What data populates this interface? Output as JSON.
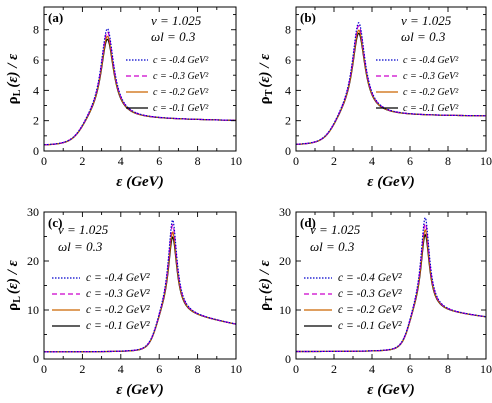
{
  "chart_data": [
    {
      "panel": "(a)",
      "type": "line",
      "xlabel": "ε (GeV)",
      "ylabel_main": "ρ",
      "ylabel_sub": "L",
      "ylabel_rest": "(ε) / ε",
      "xlim": [
        0,
        10
      ],
      "ylim": [
        0,
        9.5
      ],
      "xticks": [
        0,
        2,
        4,
        6,
        8,
        10
      ],
      "yticks": [
        0,
        2,
        4,
        6,
        8
      ],
      "params": [
        "ν = 1.025",
        "ωl = 0.3"
      ],
      "legend_position": "top-right",
      "peak": {
        "x": 3.3,
        "width": 0.9,
        "base": 2.15,
        "tail": 2.0
      },
      "series": [
        {
          "name": "c = -0.4 GeV²",
          "color": "#0000cc",
          "dash": "dotted",
          "peak_value": 8.1
        },
        {
          "name": "c = -0.3 GeV²",
          "color": "#cc00cc",
          "dash": "dashed",
          "peak_value": 7.9
        },
        {
          "name": "c = -0.2 GeV²",
          "color": "#cc6600",
          "dash": "solid",
          "peak_value": 7.6
        },
        {
          "name": "c = -0.1 GeV²",
          "color": "#000000",
          "dash": "solid",
          "peak_value": 7.4
        }
      ]
    },
    {
      "panel": "(b)",
      "type": "line",
      "xlabel": "ε (GeV)",
      "ylabel_main": "ρ",
      "ylabel_sub": "T",
      "ylabel_rest": "(ε) / ε",
      "xlim": [
        0,
        10
      ],
      "ylim": [
        0,
        9.5
      ],
      "xticks": [
        0,
        2,
        4,
        6,
        8,
        10
      ],
      "yticks": [
        0,
        2,
        4,
        6,
        8
      ],
      "params": [
        "ν = 1.025",
        "ωl = 0.3"
      ],
      "legend_position": "top-right",
      "peak": {
        "x": 3.3,
        "width": 0.9,
        "base": 2.35,
        "tail": 2.3
      },
      "series": [
        {
          "name": "c = -0.4 GeV²",
          "color": "#0000cc",
          "dash": "dotted",
          "peak_value": 8.5
        },
        {
          "name": "c = -0.3 GeV²",
          "color": "#cc00cc",
          "dash": "dashed",
          "peak_value": 8.3
        },
        {
          "name": "c = -0.2 GeV²",
          "color": "#cc6600",
          "dash": "solid",
          "peak_value": 8.0
        },
        {
          "name": "c = -0.1 GeV²",
          "color": "#000000",
          "dash": "solid",
          "peak_value": 7.8
        }
      ]
    },
    {
      "panel": "(c)",
      "type": "line",
      "xlabel": "ε (GeV)",
      "ylabel_main": "ρ",
      "ylabel_sub": "L",
      "ylabel_rest": "(ε) / ε",
      "xlim": [
        0,
        10
      ],
      "ylim": [
        0,
        30
      ],
      "xticks": [
        0,
        2,
        4,
        6,
        8,
        10
      ],
      "yticks": [
        0,
        10,
        20,
        30
      ],
      "params": [
        "ν = 1.025",
        "ωl = 0.3"
      ],
      "legend_position": "center-left",
      "peak": {
        "x": 6.7,
        "width": 0.6,
        "base": 9.5,
        "tail": 7.0
      },
      "series": [
        {
          "name": "c = -0.4 GeV²",
          "color": "#0000cc",
          "dash": "dotted",
          "peak_value": 28.5
        },
        {
          "name": "c = -0.3 GeV²",
          "color": "#cc00cc",
          "dash": "dashed",
          "peak_value": 27.5
        },
        {
          "name": "c = -0.2 GeV²",
          "color": "#cc6600",
          "dash": "solid",
          "peak_value": 26.0
        },
        {
          "name": "c = -0.1 GeV²",
          "color": "#000000",
          "dash": "solid",
          "peak_value": 25.0
        }
      ]
    },
    {
      "panel": "(d)",
      "type": "line",
      "xlabel": "ε (GeV)",
      "ylabel_main": "ρ",
      "ylabel_sub": "T",
      "ylabel_rest": "(ε) / ε",
      "xlim": [
        0,
        10
      ],
      "ylim": [
        0,
        30
      ],
      "xticks": [
        0,
        2,
        4,
        6,
        8,
        10
      ],
      "yticks": [
        0,
        10,
        20,
        30
      ],
      "params": [
        "ν = 1.025",
        "ωl = 0.3"
      ],
      "legend_position": "center-left",
      "peak": {
        "x": 6.8,
        "width": 0.6,
        "base": 10.0,
        "tail": 8.5
      },
      "series": [
        {
          "name": "c = -0.4 GeV²",
          "color": "#0000cc",
          "dash": "dotted",
          "peak_value": 29.0
        },
        {
          "name": "c = -0.3 GeV²",
          "color": "#cc00cc",
          "dash": "dashed",
          "peak_value": 27.8
        },
        {
          "name": "c = -0.2 GeV²",
          "color": "#cc6600",
          "dash": "solid",
          "peak_value": 26.5
        },
        {
          "name": "c = -0.1 GeV²",
          "color": "#000000",
          "dash": "solid",
          "peak_value": 25.5
        }
      ]
    }
  ]
}
